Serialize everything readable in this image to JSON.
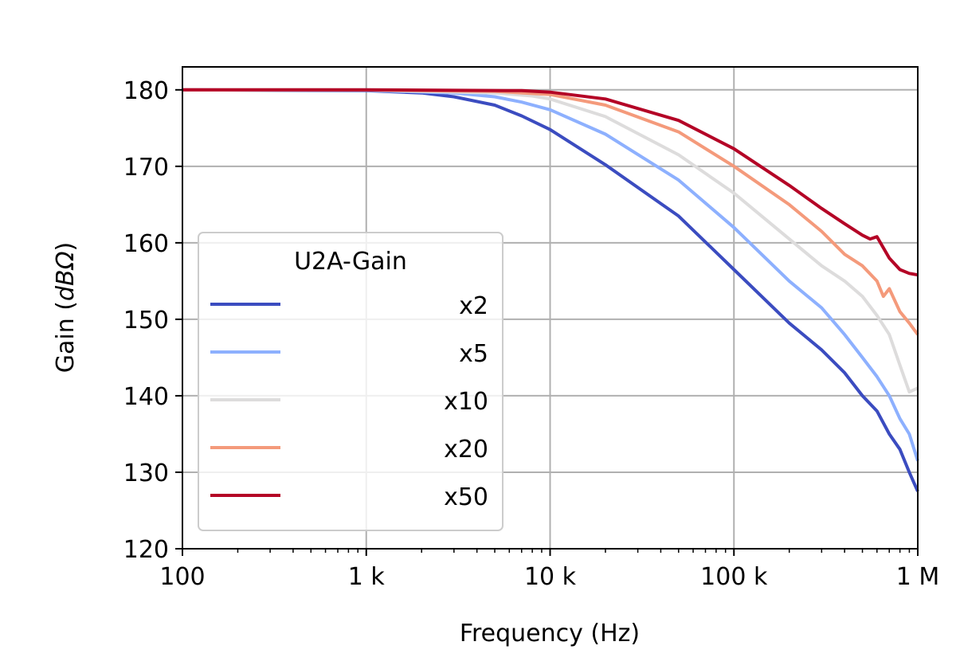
{
  "chart_data": {
    "type": "line",
    "xlabel": "Frequency (Hz)",
    "ylabel_prefix": "Gain (",
    "ylabel_unit": "dBΩ",
    "ylabel_suffix": ")",
    "xscale": "log",
    "xlim": [
      100,
      1000000
    ],
    "ylim": [
      120,
      183
    ],
    "grid": true,
    "x_ticks": [
      {
        "value": 100,
        "label": "100"
      },
      {
        "value": 1000,
        "label": "1 k"
      },
      {
        "value": 10000,
        "label": "10 k"
      },
      {
        "value": 100000,
        "label": "100 k"
      },
      {
        "value": 1000000,
        "label": "1 M"
      }
    ],
    "y_ticks": [
      {
        "value": 120,
        "label": "120"
      },
      {
        "value": 130,
        "label": "130"
      },
      {
        "value": 140,
        "label": "140"
      },
      {
        "value": 150,
        "label": "150"
      },
      {
        "value": 160,
        "label": "160"
      },
      {
        "value": 170,
        "label": "170"
      },
      {
        "value": 180,
        "label": "180"
      }
    ],
    "legend": {
      "title": "U2A-Gain",
      "placement": "lower-left"
    },
    "series": [
      {
        "name": "x2",
        "color": "#3b4cc0",
        "points": [
          [
            100,
            180
          ],
          [
            1000,
            179.9
          ],
          [
            2000,
            179.6
          ],
          [
            3000,
            179.1
          ],
          [
            5000,
            178
          ],
          [
            7000,
            176.6
          ],
          [
            10000,
            174.8
          ],
          [
            20000,
            170.2
          ],
          [
            50000,
            163.5
          ],
          [
            100000,
            156.5
          ],
          [
            200000,
            149.5
          ],
          [
            300000,
            146
          ],
          [
            400000,
            143
          ],
          [
            500000,
            140
          ],
          [
            600000,
            138
          ],
          [
            700000,
            135
          ],
          [
            800000,
            133
          ],
          [
            900000,
            130
          ],
          [
            1000000,
            127.5
          ]
        ]
      },
      {
        "name": "x5",
        "color": "#8db0fe",
        "points": [
          [
            100,
            180
          ],
          [
            1000,
            179.95
          ],
          [
            3000,
            179.6
          ],
          [
            5000,
            179.1
          ],
          [
            7000,
            178.4
          ],
          [
            10000,
            177.4
          ],
          [
            20000,
            174.2
          ],
          [
            50000,
            168.2
          ],
          [
            100000,
            162
          ],
          [
            200000,
            155
          ],
          [
            300000,
            151.5
          ],
          [
            400000,
            148
          ],
          [
            500000,
            145
          ],
          [
            600000,
            142.5
          ],
          [
            700000,
            140
          ],
          [
            800000,
            137
          ],
          [
            900000,
            135
          ],
          [
            1000000,
            131.5
          ]
        ]
      },
      {
        "name": "x10",
        "color": "#dddcdc",
        "points": [
          [
            100,
            180
          ],
          [
            1000,
            179.98
          ],
          [
            5000,
            179.6
          ],
          [
            8000,
            179.2
          ],
          [
            10000,
            178.8
          ],
          [
            20000,
            176.5
          ],
          [
            50000,
            171.5
          ],
          [
            100000,
            166.5
          ],
          [
            200000,
            160.5
          ],
          [
            300000,
            157
          ],
          [
            400000,
            155
          ],
          [
            500000,
            153
          ],
          [
            600000,
            150.5
          ],
          [
            700000,
            148
          ],
          [
            800000,
            144
          ],
          [
            900000,
            140.5
          ],
          [
            1000000,
            141
          ]
        ]
      },
      {
        "name": "x20",
        "color": "#f49a7b",
        "points": [
          [
            100,
            180
          ],
          [
            1000,
            179.98
          ],
          [
            5000,
            179.8
          ],
          [
            10000,
            179.4
          ],
          [
            20000,
            178
          ],
          [
            50000,
            174.5
          ],
          [
            100000,
            170
          ],
          [
            200000,
            165
          ],
          [
            300000,
            161.5
          ],
          [
            400000,
            158.5
          ],
          [
            500000,
            157
          ],
          [
            600000,
            155
          ],
          [
            650000,
            153
          ],
          [
            700000,
            154
          ],
          [
            800000,
            151
          ],
          [
            900000,
            149.5
          ],
          [
            1000000,
            148
          ]
        ]
      },
      {
        "name": "x50",
        "color": "#b40426",
        "points": [
          [
            100,
            180
          ],
          [
            1000,
            180
          ],
          [
            7000,
            179.9
          ],
          [
            10000,
            179.7
          ],
          [
            20000,
            178.8
          ],
          [
            50000,
            176
          ],
          [
            100000,
            172.3
          ],
          [
            200000,
            167.5
          ],
          [
            300000,
            164.5
          ],
          [
            400000,
            162.5
          ],
          [
            500000,
            161
          ],
          [
            550000,
            160.5
          ],
          [
            600000,
            160.8
          ],
          [
            700000,
            158
          ],
          [
            800000,
            156.5
          ],
          [
            900000,
            156
          ],
          [
            1000000,
            155.8
          ]
        ]
      }
    ]
  }
}
